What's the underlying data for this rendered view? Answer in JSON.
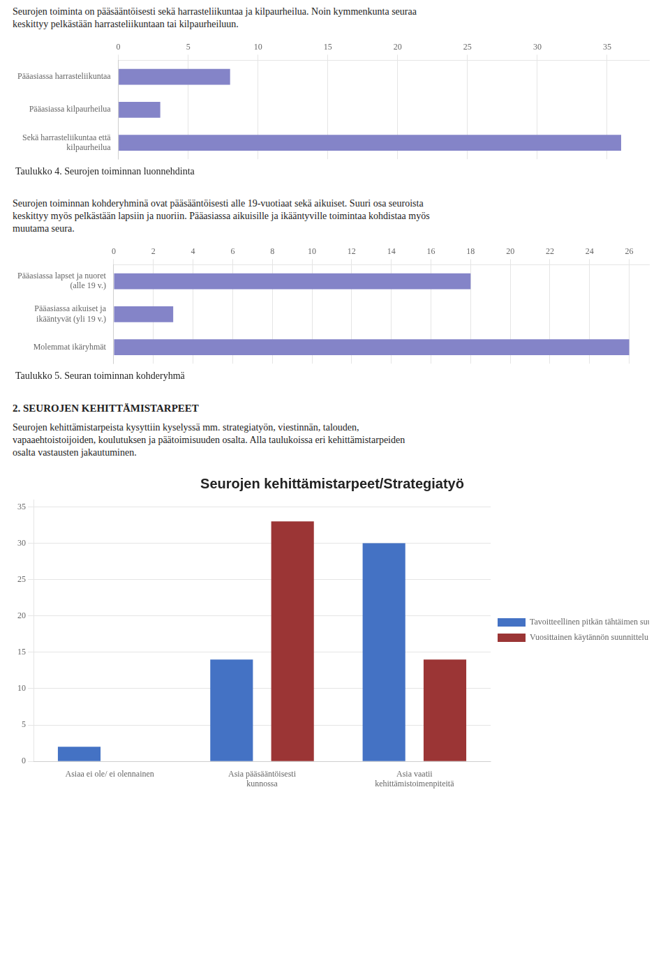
{
  "chart_data": [
    {
      "type": "bar",
      "orientation": "horizontal",
      "annotations": [
        "Seurojen toiminta on pääsääntöisesti sekä harrasteliikuntaa ja kilpaurheilua. Noin kymmenkunta seuraa\nkeskittyy pelkästään harrasteliikuntaan tai kilpaurheiluun."
      ],
      "title": "Taulukko 4. Seurojen toiminnan luonnehdinta",
      "categories": [
        "Pääasiassa harrasteliikuntaa",
        "Pääasiassa kilpaurheilua",
        "Sekä harrasteliikuntaa että\nkilpaurheilua"
      ],
      "values": [
        8,
        3,
        36
      ],
      "color": "#8484c8",
      "xlim": [
        0,
        38
      ],
      "xticks": [
        0,
        5,
        10,
        15,
        20,
        25,
        30,
        35
      ],
      "grid": true
    },
    {
      "type": "bar",
      "orientation": "horizontal",
      "annotations": [
        "Seurojen toiminnan kohderyhminä ovat pääsääntöisesti alle 19-vuotiaat sekä aikuiset. Suuri osa seuroista\nkeskittyy myös pelkästään lapsiin ja nuoriin. Pääasiassa aikuisille ja ikääntyville toimintaa kohdistaa myös\nmuutama seura."
      ],
      "title": "Taulukko 5. Seuran toiminnan kohderyhmä",
      "categories": [
        "Pääasiassa lapset ja nuoret\n(alle 19 v.)",
        "Pääasiassa aikuiset ja\nikääntyvät (yli 19 v.)",
        "Molemmat ikäryhmät"
      ],
      "values": [
        18,
        3,
        26
      ],
      "color": "#8484c8",
      "xlim": [
        0,
        27
      ],
      "xticks": [
        0,
        2,
        4,
        6,
        8,
        10,
        12,
        14,
        16,
        18,
        20,
        22,
        24,
        26
      ],
      "grid": true
    },
    {
      "type": "bar",
      "annotations": [
        "2.  SEUROJEN KEHITTÄMISTARPEET",
        "Seurojen kehittämistarpeista kysyttiin kyselyssä mm. strategiatyön, viestinnän, talouden,\nvapaaehtoistoijoiden, koulutuksen ja päätoimisuuden osalta. Alla taulukoissa eri kehittämistarpeiden\nosalta vastausten jakautuminen."
      ],
      "title": "Seurojen kehittämistarpeet/Strategiatyö",
      "categories": [
        "Asiaa ei ole/ ei olennainen",
        "Asia pääsääntöisesti\nkunnossa",
        "Asia vaatii\nkehittämistoimenpiteitä"
      ],
      "series": [
        {
          "name": "Tavoitteellinen pitkän tähtäimen\nsuunnittelu",
          "color": "#4472c4",
          "values": [
            2,
            14,
            30
          ]
        },
        {
          "name": "Vuosittainen käytännön suunnittelu",
          "color": "#9b3535",
          "values": [
            0,
            33,
            14
          ]
        }
      ],
      "ylim": [
        0,
        36
      ],
      "yticks": [
        0,
        5,
        10,
        15,
        20,
        25,
        30,
        35
      ],
      "grid": true,
      "legend": "right"
    }
  ]
}
